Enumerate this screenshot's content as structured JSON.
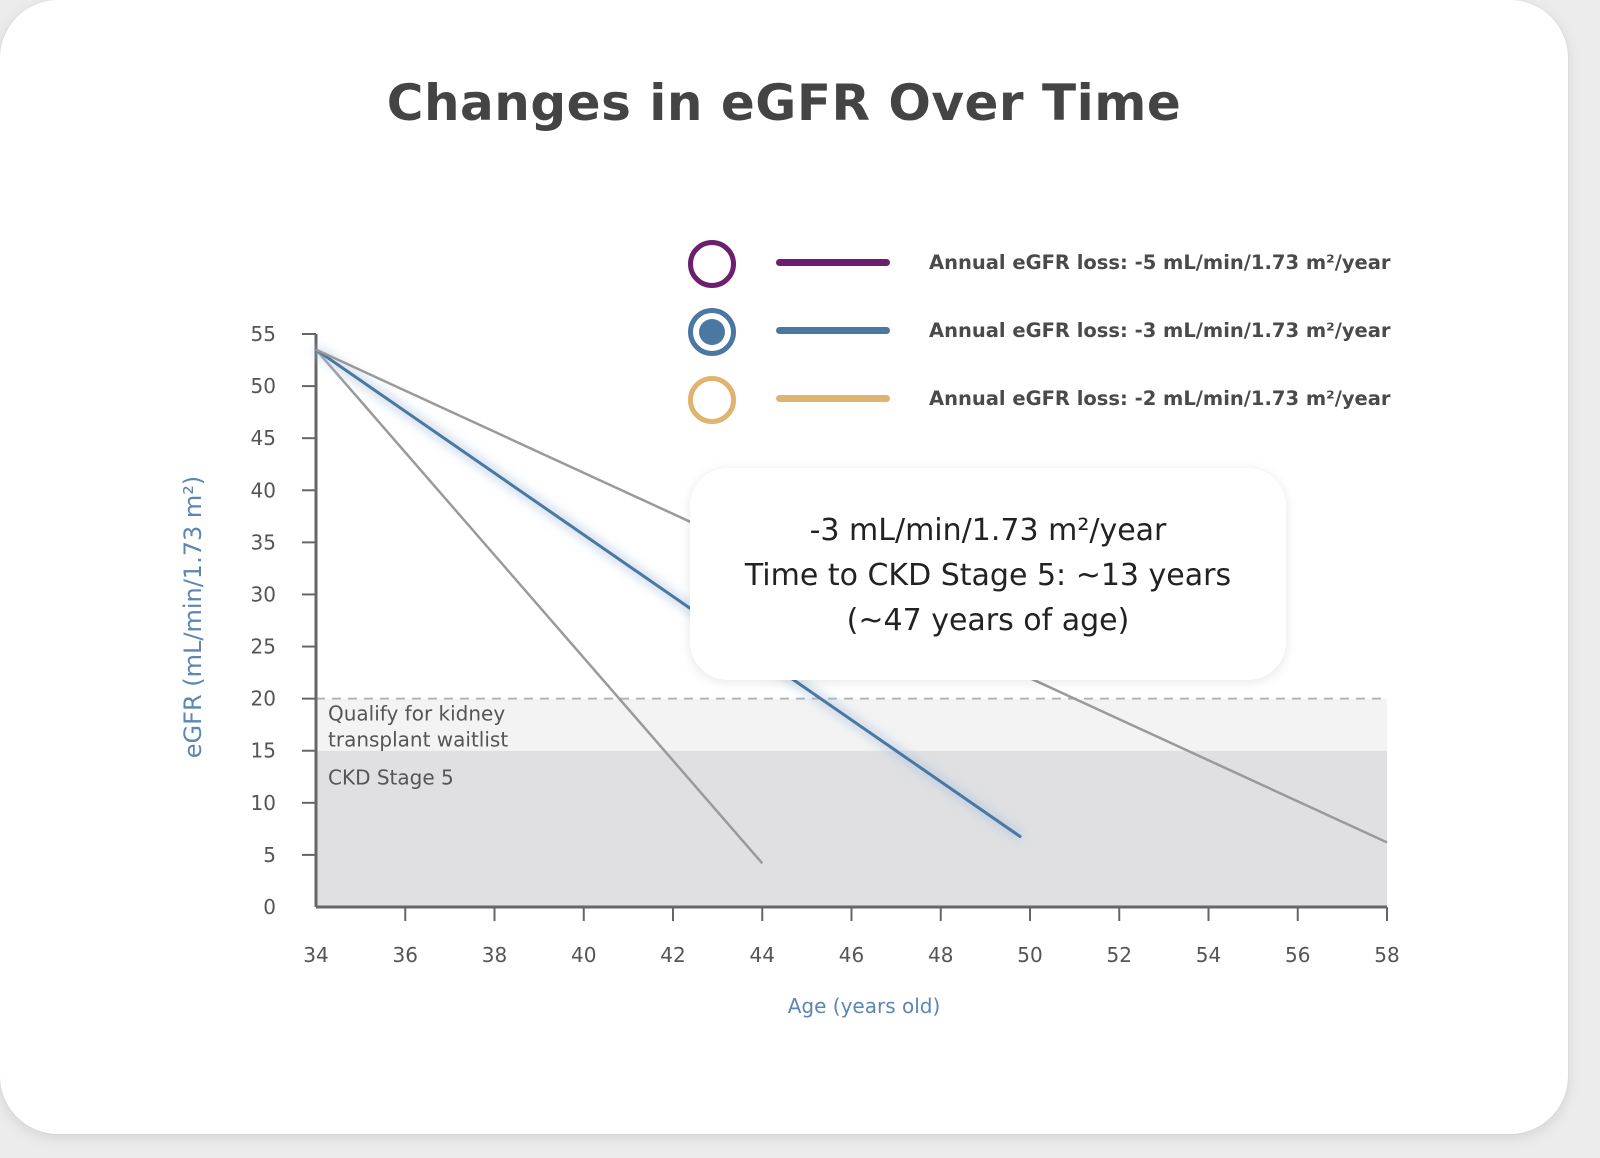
{
  "title": "Changes in eGFR Over Time",
  "legend": [
    {
      "label": "Annual eGFR loss: -5 mL/min/1.73 m²/year",
      "color": "#6b1f6e",
      "marker_icon": "circle-outline-icon",
      "selected": false
    },
    {
      "label": "Annual eGFR loss: -3 mL/min/1.73 m²/year",
      "color": "#4a78a3",
      "marker_icon": "circle-filled-icon",
      "selected": true
    },
    {
      "label": "Annual eGFR loss: -2 mL/min/1.73 m²/year",
      "color": "#e0b36e",
      "marker_icon": "circle-outline-icon",
      "selected": false
    }
  ],
  "callout": {
    "line1": "-3 mL/min/1.73 m²/year",
    "line2": "Time to CKD Stage 5: ~13 years",
    "line3": "(~47 years of age)"
  },
  "chart_data": {
    "type": "line",
    "title": "Changes in eGFR Over Time",
    "xlabel": "Age (years old)",
    "ylabel": "eGFR (mL/min/1.73 m²)",
    "xlim": [
      34,
      58
    ],
    "ylim": [
      0,
      55
    ],
    "x_ticks": [
      34,
      36,
      38,
      40,
      42,
      44,
      46,
      48,
      50,
      52,
      54,
      56,
      58
    ],
    "y_ticks": [
      0,
      5,
      10,
      15,
      20,
      25,
      30,
      35,
      40,
      45,
      50,
      55
    ],
    "grid": false,
    "legend_position": "top-right",
    "series": [
      {
        "name": "Annual eGFR loss: -5 mL/min/1.73 m²/year",
        "color": "#9a9a9a",
        "x": [
          34,
          44
        ],
        "y": [
          53.5,
          4.2
        ]
      },
      {
        "name": "Annual eGFR loss: -3 mL/min/1.73 m²/year",
        "color": "#4a78a3",
        "highlighted": true,
        "x": [
          34,
          49.8
        ],
        "y": [
          53.5,
          6.7
        ]
      },
      {
        "name": "Annual eGFR loss: -2 mL/min/1.73 m²/year",
        "color": "#9a9a9a",
        "x": [
          34,
          58
        ],
        "y": [
          53.5,
          6.2
        ]
      }
    ],
    "bands": [
      {
        "label": "Qualify for kidney transplant waitlist",
        "y": [
          15,
          20
        ],
        "color": "#f3f3f3",
        "dashed_top": true
      },
      {
        "label": "CKD Stage 5",
        "y": [
          0,
          15
        ],
        "color": "#e0e0e2"
      }
    ]
  }
}
